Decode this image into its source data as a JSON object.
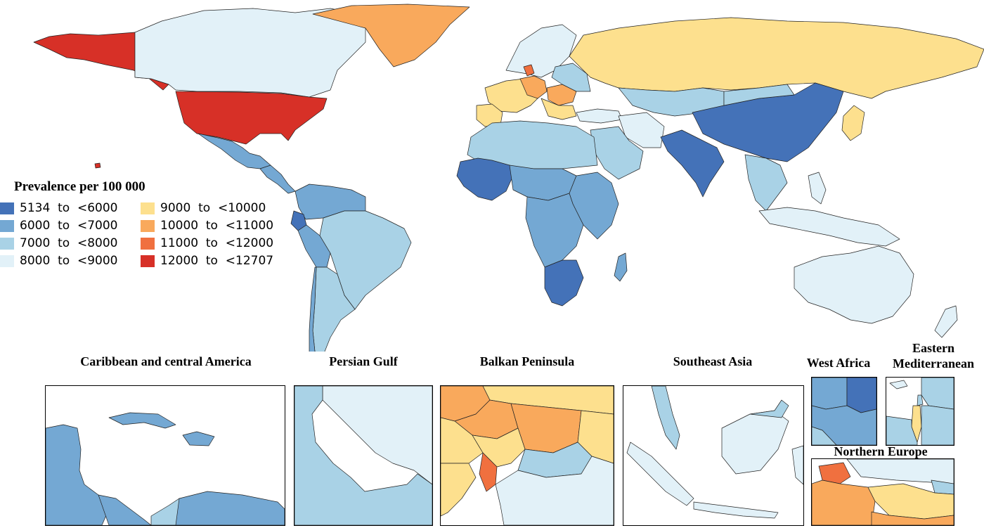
{
  "legend": {
    "title": "Prevalence per 100 000",
    "items": [
      {
        "range": "5134  to  <6000",
        "color": "#4472b8"
      },
      {
        "range": "6000  to  <7000",
        "color": "#74a8d3"
      },
      {
        "range": "7000  to  <8000",
        "color": "#a9d2e6"
      },
      {
        "range": "8000  to  <9000",
        "color": "#e2f1f8"
      },
      {
        "range": "9000  to  <10000",
        "color": "#fde08e"
      },
      {
        "range": "10000  to  <11000",
        "color": "#f9a95c"
      },
      {
        "range": "11000  to  <12000",
        "color": "#f0703f"
      },
      {
        "range": "12000  to  <12707",
        "color": "#d73027"
      }
    ]
  },
  "insets": {
    "caribbean": "Caribbean and central America",
    "persian_gulf": "Persian Gulf",
    "balkan": "Balkan Peninsula",
    "southeast_asia": "Southeast Asia",
    "west_africa": "West Africa",
    "eastern_med_line1": "Eastern",
    "eastern_med_line2": "Mediterranean",
    "northern_europe": "Northern Europe"
  },
  "colors": {
    "c1": "#4472b8",
    "c2": "#74a8d3",
    "c3": "#a9d2e6",
    "c4": "#e2f1f8",
    "c5": "#fde08e",
    "c6": "#f9a95c",
    "c7": "#f0703f",
    "c8": "#d73027"
  }
}
